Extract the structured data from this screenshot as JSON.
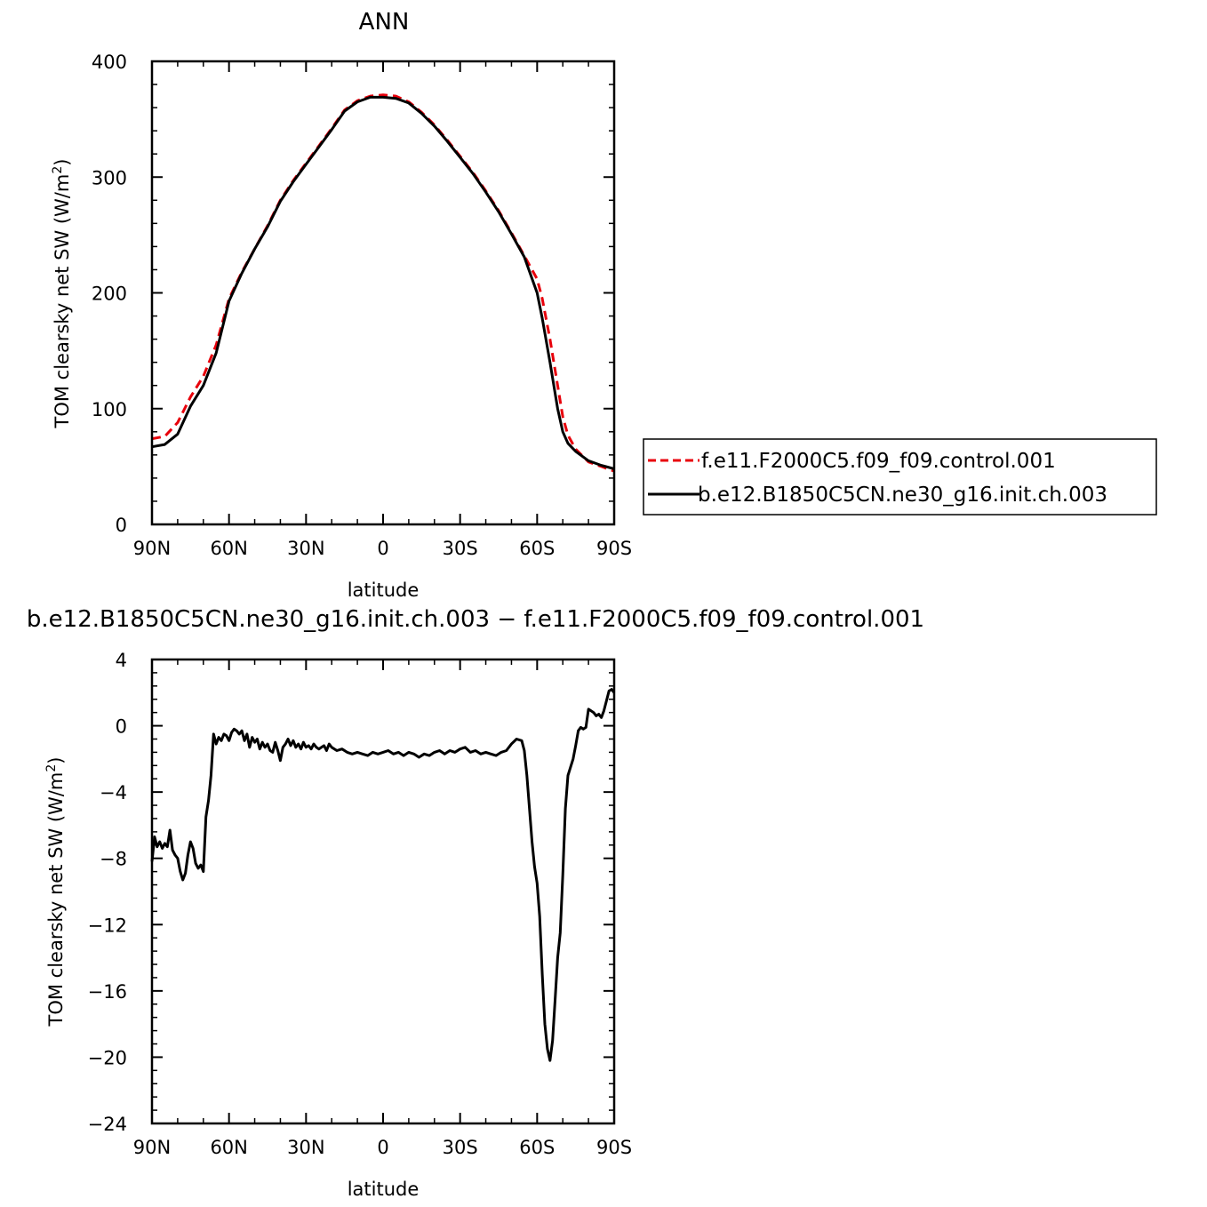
{
  "chart_data": [
    {
      "type": "line",
      "title": "ANN",
      "xlabel": "latitude",
      "ylabel": "TOM clearsky net SW (W/m",
      "ylabel_sup": "2",
      "ylabel_end": ")",
      "xlim": [
        90,
        -90
      ],
      "ylim": [
        0,
        400
      ],
      "x_ticks": [
        {
          "value": 90,
          "label": "90N"
        },
        {
          "value": 60,
          "label": "60N"
        },
        {
          "value": 30,
          "label": "30N"
        },
        {
          "value": 0,
          "label": "0"
        },
        {
          "value": -30,
          "label": "30S"
        },
        {
          "value": -60,
          "label": "60S"
        },
        {
          "value": -90,
          "label": "90S"
        }
      ],
      "y_ticks": [
        {
          "value": 0,
          "label": "0"
        },
        {
          "value": 100,
          "label": "100"
        },
        {
          "value": 200,
          "label": "200"
        },
        {
          "value": 300,
          "label": "300"
        },
        {
          "value": 400,
          "label": "400"
        }
      ],
      "legend_position": "right",
      "series": [
        {
          "name": "f.e11.F2000C5.f09_f09.control.001",
          "color": "#e8000b",
          "dash": "dashed",
          "x": [
            90,
            85,
            80,
            75,
            70,
            65,
            60,
            55,
            50,
            45,
            40,
            35,
            30,
            25,
            20,
            15,
            10,
            5,
            0,
            -5,
            -10,
            -15,
            -20,
            -25,
            -30,
            -35,
            -40,
            -45,
            -50,
            -55,
            -60,
            -62,
            -65,
            -68,
            -70,
            -72,
            -75,
            -80,
            -85,
            -90
          ],
          "y": [
            74,
            76,
            88,
            110,
            128,
            155,
            195,
            218,
            238,
            258,
            280,
            297,
            312,
            327,
            342,
            358,
            366,
            370,
            371,
            370,
            365,
            356,
            345,
            332,
            318,
            304,
            288,
            271,
            252,
            232,
            212,
            195,
            160,
            120,
            93,
            77,
            65,
            54,
            50,
            46
          ]
        },
        {
          "name": "b.e12.B1850C5CN.ne30_g16.init.ch.003",
          "color": "#000000",
          "dash": "solid",
          "x": [
            90,
            85,
            80,
            75,
            70,
            65,
            60,
            55,
            50,
            45,
            40,
            35,
            30,
            25,
            20,
            15,
            10,
            5,
            0,
            -5,
            -10,
            -15,
            -20,
            -25,
            -30,
            -35,
            -40,
            -45,
            -50,
            -55,
            -60,
            -62,
            -65,
            -68,
            -70,
            -72,
            -75,
            -80,
            -85,
            -90
          ],
          "y": [
            67,
            69,
            78,
            102,
            120,
            148,
            193,
            217,
            238,
            257,
            279,
            296,
            311,
            326,
            341,
            357,
            365,
            369,
            369,
            368,
            364,
            355,
            344,
            331,
            317,
            303,
            287,
            270,
            251,
            231,
            200,
            178,
            140,
            100,
            80,
            70,
            63,
            55,
            51,
            48
          ]
        }
      ]
    },
    {
      "type": "line",
      "title": "b.e12.B1850C5CN.ne30_g16.init.ch.003 − f.e11.F2000C5.f09_f09.control.001",
      "xlabel": "latitude",
      "ylabel": "TOM clearsky net SW (W/m",
      "ylabel_sup": "2",
      "ylabel_end": ")",
      "xlim": [
        90,
        -90
      ],
      "ylim": [
        -24,
        4
      ],
      "x_ticks": [
        {
          "value": 90,
          "label": "90N"
        },
        {
          "value": 60,
          "label": "60N"
        },
        {
          "value": 30,
          "label": "30N"
        },
        {
          "value": 0,
          "label": "0"
        },
        {
          "value": -30,
          "label": "30S"
        },
        {
          "value": -60,
          "label": "60S"
        },
        {
          "value": -90,
          "label": "90S"
        }
      ],
      "y_ticks": [
        {
          "value": -24,
          "label": "−24"
        },
        {
          "value": -20,
          "label": "−20"
        },
        {
          "value": -16,
          "label": "−16"
        },
        {
          "value": -12,
          "label": "−12"
        },
        {
          "value": -8,
          "label": "−8"
        },
        {
          "value": -4,
          "label": "−4"
        },
        {
          "value": 0,
          "label": "0"
        },
        {
          "value": 4,
          "label": "4"
        }
      ],
      "series": [
        {
          "color": "#000000",
          "dash": "solid",
          "x": [
            90,
            89,
            88,
            87,
            86,
            85,
            84,
            83,
            82,
            81,
            80,
            79,
            78,
            77,
            76,
            75,
            74,
            73,
            72,
            71,
            70,
            69,
            68,
            67,
            66,
            65,
            64,
            63,
            62,
            61,
            60,
            59,
            58,
            57,
            56,
            55,
            54,
            53,
            52,
            51,
            50,
            49,
            48,
            47,
            46,
            45,
            44,
            43,
            42,
            41,
            40,
            39,
            38,
            37,
            36,
            35,
            34,
            33,
            32,
            31,
            30,
            29,
            28,
            27,
            26,
            25,
            24,
            23,
            22,
            21,
            20,
            18,
            16,
            14,
            12,
            10,
            8,
            6,
            4,
            2,
            0,
            -2,
            -4,
            -6,
            -8,
            -10,
            -12,
            -14,
            -16,
            -18,
            -20,
            -22,
            -24,
            -26,
            -28,
            -30,
            -32,
            -34,
            -36,
            -38,
            -40,
            -42,
            -44,
            -46,
            -48,
            -50,
            -52,
            -54,
            -55,
            -56,
            -57,
            -58,
            -59,
            -60,
            -61,
            -62,
            -63,
            -64,
            -65,
            -66,
            -67,
            -68,
            -69,
            -70,
            -71,
            -72,
            -73,
            -74,
            -75,
            -76,
            -77,
            -78,
            -79,
            -80,
            -81,
            -82,
            -83,
            -84,
            -85,
            -86,
            -87,
            -88,
            -89,
            -90
          ],
          "y": [
            -8.2,
            -6.7,
            -7.3,
            -7.0,
            -7.4,
            -7.1,
            -7.3,
            -6.3,
            -7.5,
            -7.8,
            -8.0,
            -8.8,
            -9.3,
            -8.9,
            -7.8,
            -7.0,
            -7.4,
            -8.3,
            -8.6,
            -8.4,
            -8.8,
            -5.5,
            -4.5,
            -3.0,
            -0.5,
            -1.1,
            -0.7,
            -0.9,
            -0.5,
            -0.6,
            -0.9,
            -0.4,
            -0.2,
            -0.3,
            -0.5,
            -0.3,
            -0.9,
            -0.5,
            -1.3,
            -0.7,
            -1.0,
            -0.8,
            -1.4,
            -1.0,
            -1.3,
            -1.1,
            -1.5,
            -1.6,
            -1.0,
            -1.5,
            -2.1,
            -1.3,
            -1.1,
            -0.8,
            -1.2,
            -0.9,
            -1.3,
            -1.1,
            -1.4,
            -1.0,
            -1.3,
            -1.2,
            -1.4,
            -1.1,
            -1.3,
            -1.4,
            -1.3,
            -1.2,
            -1.5,
            -1.1,
            -1.3,
            -1.5,
            -1.4,
            -1.6,
            -1.7,
            -1.6,
            -1.7,
            -1.8,
            -1.6,
            -1.7,
            -1.6,
            -1.5,
            -1.7,
            -1.6,
            -1.8,
            -1.6,
            -1.7,
            -1.9,
            -1.7,
            -1.8,
            -1.6,
            -1.5,
            -1.7,
            -1.5,
            -1.6,
            -1.4,
            -1.3,
            -1.6,
            -1.5,
            -1.7,
            -1.6,
            -1.7,
            -1.8,
            -1.6,
            -1.5,
            -1.1,
            -0.8,
            -0.9,
            -1.5,
            -3.0,
            -5.0,
            -7.0,
            -8.5,
            -9.5,
            -11.5,
            -15.0,
            -18.0,
            -19.5,
            -20.2,
            -19.0,
            -16.5,
            -14.0,
            -12.5,
            -9.0,
            -5.0,
            -3.0,
            -2.5,
            -2.0,
            -1.2,
            -0.3,
            -0.1,
            -0.2,
            -0.1,
            1.0,
            0.9,
            0.8,
            0.6,
            0.7,
            0.5,
            0.9,
            1.5,
            2.1,
            2.2,
            2.0
          ]
        }
      ]
    }
  ]
}
